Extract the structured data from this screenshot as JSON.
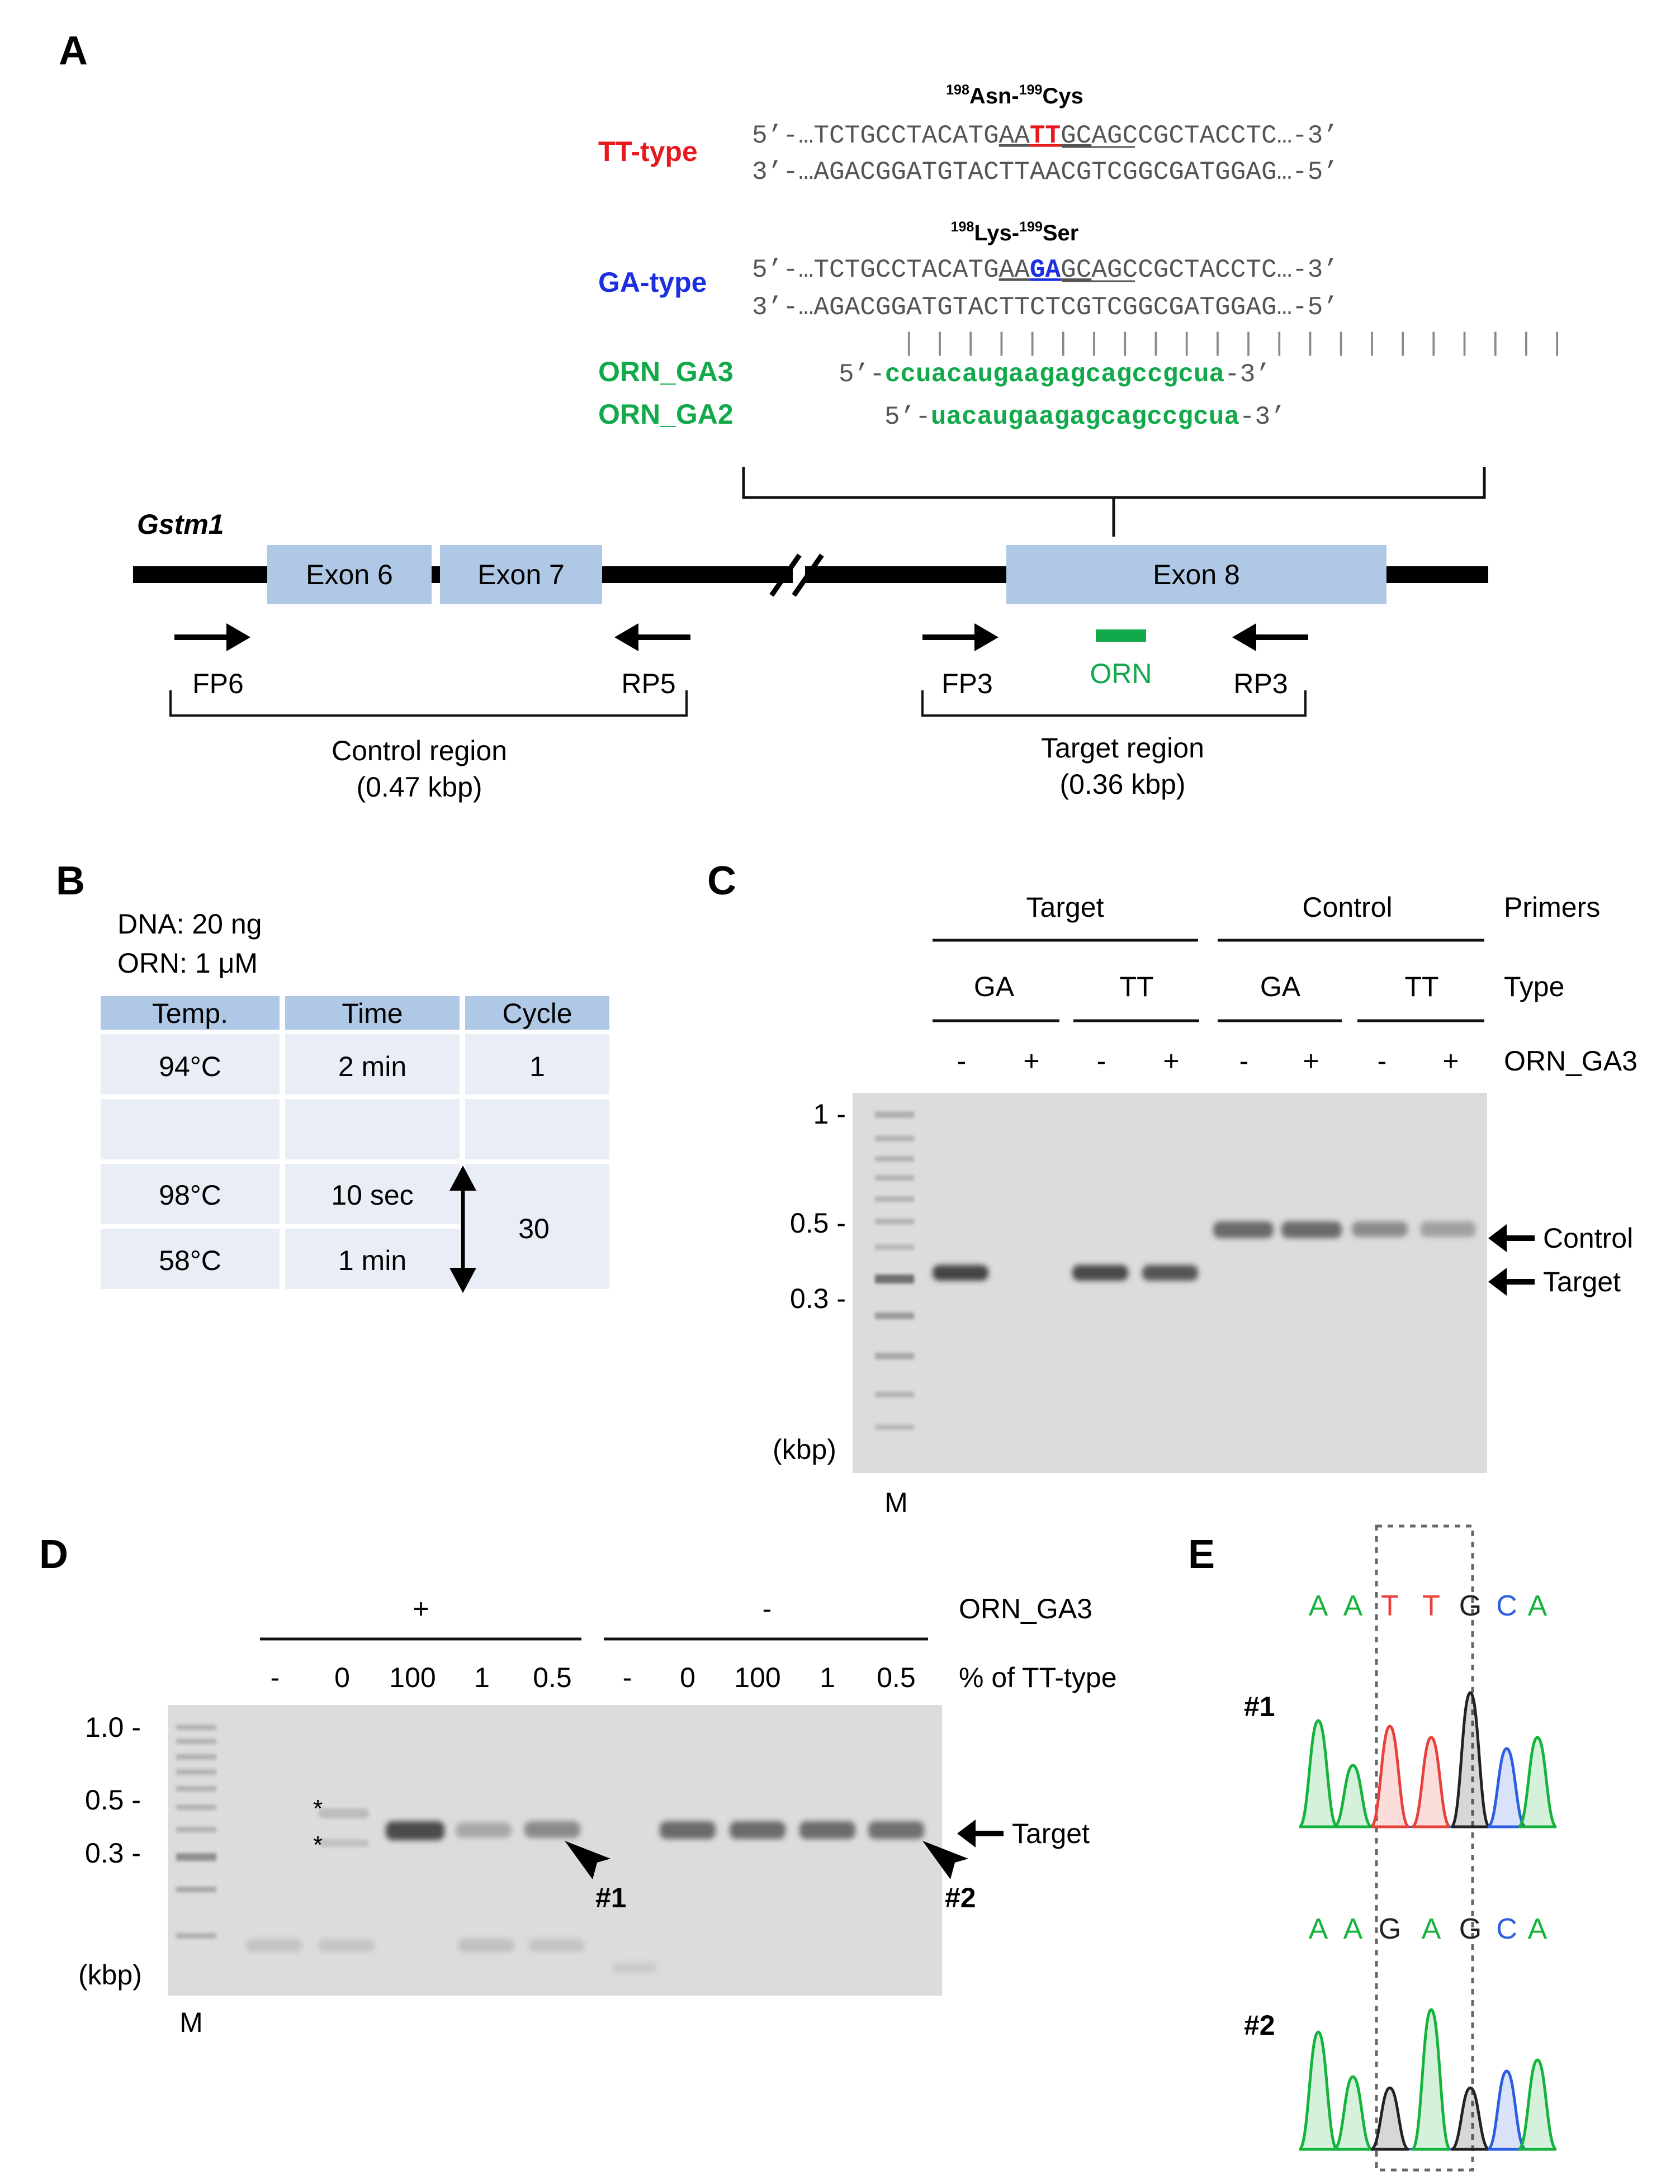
{
  "colors": {
    "tt": "#e8191e",
    "ga": "#1a2fe0",
    "orn": "#11a94a",
    "exon": "#aec8e6",
    "gel": "#dcdcdc",
    "gel_band": "#4a4a4a",
    "table_head": "#aec8e6",
    "table_cell": "#e9edf6"
  },
  "panelA": {
    "label": "A",
    "tt": {
      "label": "TT-type",
      "aa_top": "198",
      "aa_a": "Asn-",
      "aa_mid": "199",
      "aa_b": "Cys",
      "top_pre": "5’-…TCTGCCTACATG",
      "top_u1": "AA",
      "top_mut": "TT",
      "top_u2": "GC",
      "top_post": "AGCCGCTACCTC…-3’",
      "bottom": "3’-…AGACGGATGTACTTAACGTCGGCGATGGAG…-5’"
    },
    "ga": {
      "label": "GA-type",
      "aa_top": "198",
      "aa_a": "Lys-",
      "aa_mid": "199",
      "aa_b": "Ser",
      "top_pre": "5’-…TCTGCCTACATG",
      "top_u1": "AA",
      "top_mut": "GA",
      "top_u2": "GC",
      "top_post": "AGCCGCTACCTC…-3’",
      "bottom": "3’-…AGACGGATGTACTTCTCGTCGGCGATGGAG…-5’"
    },
    "pairing_bars": "| | | | | | | | | | | | | | | | | | | | | |",
    "orn3": {
      "label": "ORN_GA3",
      "prefix": "5’-",
      "seq": "ccuacaugaagagcagccgcua",
      "suffix": "-3’"
    },
    "orn2": {
      "label": "ORN_GA2",
      "prefix": "5’-",
      "seq": "uacaugaagagcagccgcua",
      "suffix": "-3’"
    },
    "gene": "Gstm1",
    "exons": [
      "Exon 6",
      "Exon 7",
      "Exon 8"
    ],
    "orn_label": "ORN",
    "primers": [
      "FP6",
      "RP5",
      "FP3",
      "RP3"
    ],
    "control_region": {
      "name": "Control region",
      "size": "(0.47 kbp)"
    },
    "target_region": {
      "name": "Target region",
      "size": "(0.36 kbp)"
    }
  },
  "panelB": {
    "label": "B",
    "dna": "DNA: 20 ng",
    "orn": "ORN: 1 μM",
    "headers": [
      "Temp.",
      "Time",
      "Cycle"
    ],
    "rows": [
      [
        "94°C",
        "2 min",
        "1"
      ],
      [
        "",
        "",
        ""
      ],
      [
        "98°C",
        "10 sec",
        ""
      ],
      [
        "58°C",
        "1 min",
        ""
      ]
    ],
    "cycle_count": "30"
  },
  "panelC": {
    "label": "C",
    "groups": [
      "Target",
      "Control"
    ],
    "types": [
      "GA",
      "TT",
      "GA",
      "TT"
    ],
    "orn_signs": [
      "-",
      "+",
      "-",
      "+",
      "-",
      "+",
      "-",
      "+"
    ],
    "row_labels": [
      "Primers",
      "Type",
      "ORN_GA3"
    ],
    "markers": [
      "1 -",
      "0.5 -",
      "0.3 -"
    ],
    "unit": "(kbp)",
    "lane_m": "M",
    "arrows": [
      "Control",
      "Target"
    ]
  },
  "panelD": {
    "label": "D",
    "orn_groups": [
      "+",
      "-"
    ],
    "percent": [
      "-",
      "0",
      "100",
      "1",
      "0.5",
      "-",
      "0",
      "100",
      "1",
      "0.5"
    ],
    "row_labels": [
      "ORN_GA3",
      "% of TT-type"
    ],
    "markers": [
      "1.0 -",
      "0.5 -",
      "0.3 -"
    ],
    "unit": "(kbp)",
    "lane_m": "M",
    "star": "*",
    "arrow_target": "Target",
    "samples": [
      "#1",
      "#2"
    ]
  },
  "panelE": {
    "label": "E",
    "seq1": [
      "A",
      "A",
      "T",
      "T",
      "G",
      "C",
      "A"
    ],
    "seq2": [
      "A",
      "A",
      "G",
      "A",
      "G",
      "C",
      "A"
    ],
    "samples": [
      "#1",
      "#2"
    ],
    "base_colors": {
      "A": "#14b33c",
      "T": "#e8413c",
      "G": "#222222",
      "C": "#2b5fe0"
    }
  }
}
